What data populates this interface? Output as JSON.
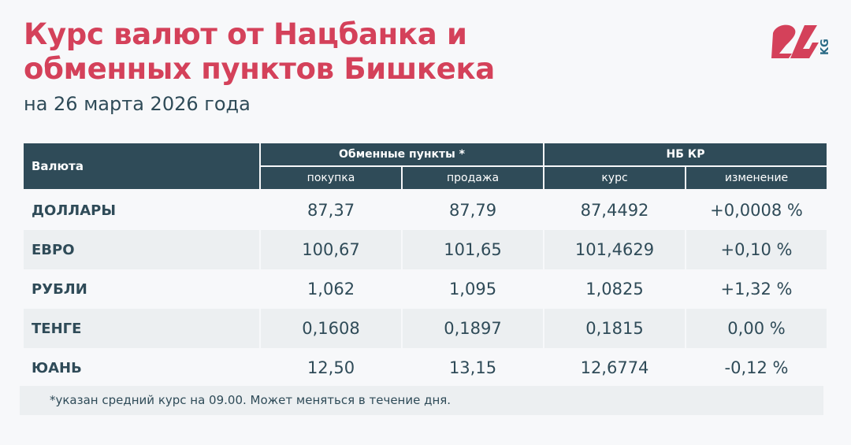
{
  "title_line1": "Курс валют от Нацбанка и",
  "title_line2": "обменных пунктов Бишкека",
  "subtitle": "на 26 марта 2026 года",
  "logo": {
    "text": "24",
    "suffix": "KG",
    "color": "#d4415a",
    "suffix_color": "#2a6a85"
  },
  "table": {
    "col_currency": "Валюта",
    "group_exchange": "Обменные пункты *",
    "group_nb": "НБ КР",
    "sub_buy": "покупка",
    "sub_sell": "продажа",
    "sub_rate": "курс",
    "sub_change": "изменение",
    "rows": [
      {
        "name": "ДОЛЛАРЫ",
        "buy": "87,37",
        "sell": "87,79",
        "rate": "87,4492",
        "change": "+0,0008 %"
      },
      {
        "name": "ЕВРО",
        "buy": "100,67",
        "sell": "101,65",
        "rate": "101,4629",
        "change": "+0,10 %"
      },
      {
        "name": "РУБЛИ",
        "buy": "1,062",
        "sell": "1,095",
        "rate": "1,0825",
        "change": "+1,32 %"
      },
      {
        "name": "ТЕНГЕ",
        "buy": "0,1608",
        "sell": "0,1897",
        "rate": "0,1815",
        "change": "0,00 %"
      },
      {
        "name": "ЮАНЬ",
        "buy": "12,50",
        "sell": "13,15",
        "rate": "12,6774",
        "change": "-0,12 %"
      }
    ]
  },
  "footnote": "*указан средний курс на 09.00. Может меняться в течение дня.",
  "colors": {
    "accent": "#d4415a",
    "header": "#2f4b58"
  }
}
